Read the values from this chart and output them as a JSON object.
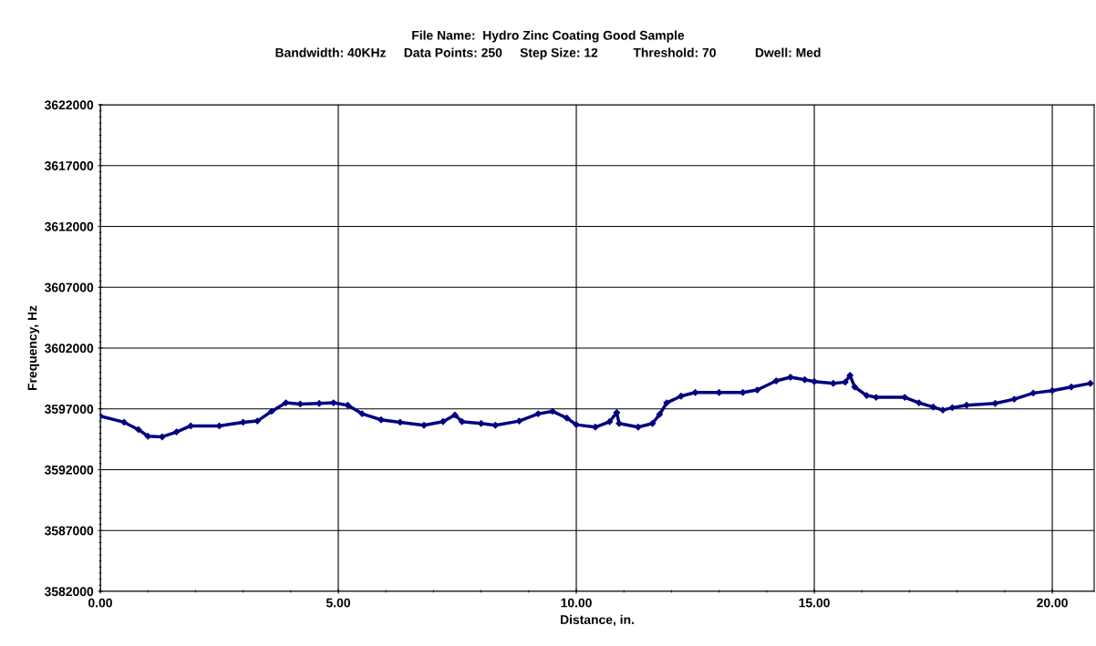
{
  "chart_data": {
    "type": "line",
    "title": "File Name:  Hydro Zinc Coating Good Sample",
    "subtitle": "Bandwidth: 40KHz     Data Points: 250     Step Size: 12          Threshold: 70           Dwell: Med",
    "xlabel": "Distance, in.",
    "ylabel": "Frequency, Hz",
    "x": [
      0,
      0.5,
      0.8,
      1.0,
      1.3,
      1.6,
      1.9,
      2.5,
      3.0,
      3.3,
      3.6,
      3.9,
      4.2,
      4.6,
      4.9,
      5.2,
      5.5,
      5.9,
      6.3,
      6.8,
      7.2,
      7.45,
      7.6,
      8.0,
      8.3,
      8.8,
      9.2,
      9.5,
      9.8,
      10.0,
      10.4,
      10.7,
      10.85,
      10.9,
      11.3,
      11.6,
      11.75,
      11.9,
      12.2,
      12.5,
      13.0,
      13.5,
      13.8,
      14.2,
      14.5,
      14.8,
      15.0,
      15.4,
      15.65,
      15.75,
      15.85,
      16.1,
      16.3,
      16.9,
      17.2,
      17.5,
      17.7,
      17.9,
      18.2,
      18.8,
      19.2,
      19.6,
      20.0,
      20.4,
      20.8
    ],
    "series": [
      {
        "color": "#000080",
        "values": [
          3596400,
          3595900,
          3595300,
          3594750,
          3594700,
          3595100,
          3595600,
          3595600,
          3595900,
          3596000,
          3596800,
          3597500,
          3597400,
          3597450,
          3597500,
          3597300,
          3596600,
          3596100,
          3595900,
          3595650,
          3595950,
          3596500,
          3595950,
          3595800,
          3595650,
          3596000,
          3596600,
          3596800,
          3596250,
          3595700,
          3595500,
          3595950,
          3596700,
          3595800,
          3595500,
          3595800,
          3596550,
          3597500,
          3598050,
          3598350,
          3598350,
          3598350,
          3598550,
          3599300,
          3599600,
          3599400,
          3599250,
          3599100,
          3599200,
          3599750,
          3598800,
          3598100,
          3597950,
          3597950,
          3597500,
          3597150,
          3596900,
          3597100,
          3597300,
          3597450,
          3597800,
          3598300,
          3598500,
          3598800,
          3599100
        ]
      }
    ],
    "xlim": [
      0,
      20.88
    ],
    "xticks": [
      {
        "value": 0,
        "label": "0.00"
      },
      {
        "value": 5,
        "label": "5.00"
      },
      {
        "value": 10,
        "label": "10.00"
      },
      {
        "value": 15,
        "label": "15.00"
      },
      {
        "value": 20,
        "label": "20.00"
      }
    ],
    "ylim": [
      3582000,
      3622000
    ],
    "yticks": [
      3582000,
      3587000,
      3592000,
      3597000,
      3602000,
      3607000,
      3612000,
      3617000,
      3622000
    ],
    "grid": true,
    "marker": "diamond",
    "line_style": "solid"
  }
}
